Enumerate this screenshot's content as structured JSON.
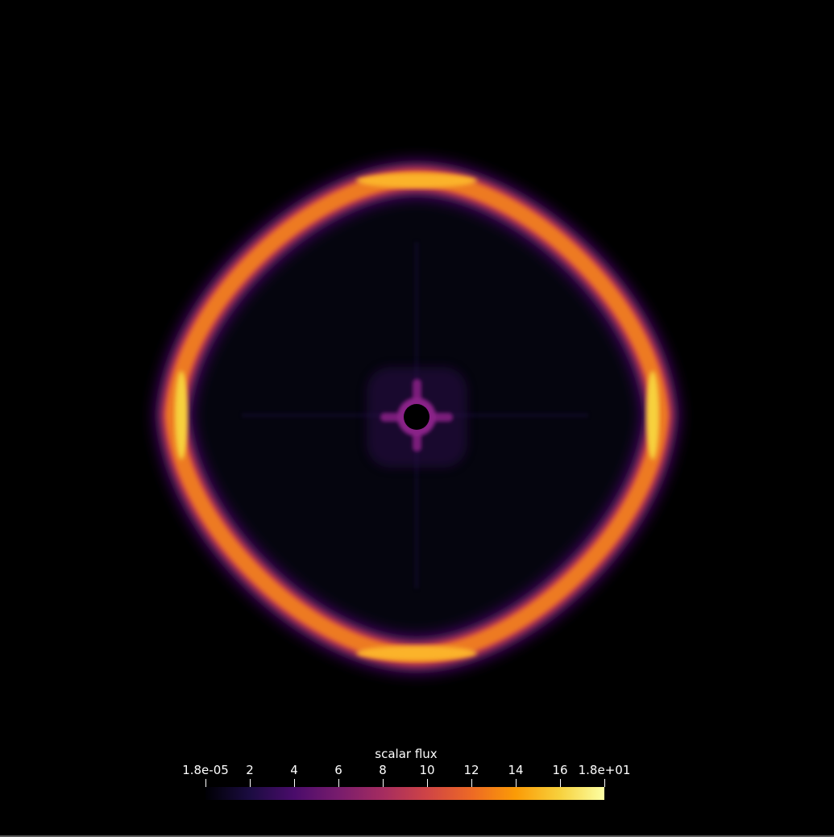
{
  "colorbar": {
    "title": "scalar flux",
    "min_label": "1.8e-05",
    "max_label": "1.8e+01",
    "min_value": 1.8e-05,
    "max_value": 18,
    "colormap": "inferno",
    "colormap_stops": [
      "#000004",
      "#1b0c41",
      "#4a0c6b",
      "#781c6d",
      "#a52c60",
      "#cf4446",
      "#ed6925",
      "#fb9b06",
      "#f7d13d",
      "#fcffa4"
    ],
    "ticks": [
      {
        "label": "1.8e-05",
        "value": 1.8e-05
      },
      {
        "label": "2",
        "value": 2
      },
      {
        "label": "4",
        "value": 4
      },
      {
        "label": "6",
        "value": 6
      },
      {
        "label": "8",
        "value": 8
      },
      {
        "label": "10",
        "value": 10
      },
      {
        "label": "12",
        "value": 12
      },
      {
        "label": "14",
        "value": 14
      },
      {
        "label": "16",
        "value": 16
      },
      {
        "label": "1.8e+01",
        "value": 18
      }
    ]
  },
  "colors": {
    "background": "#000000",
    "text": "#ffffff",
    "border": "#5a5a5a"
  }
}
